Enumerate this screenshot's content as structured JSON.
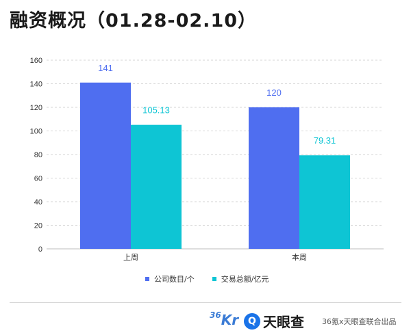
{
  "title": "融资概况（01.28-02.10）",
  "chart_data": {
    "type": "bar",
    "categories": [
      "上周",
      "本周"
    ],
    "series": [
      {
        "name": "公司数目/个",
        "values": [
          141,
          120
        ],
        "color": "#4f6ef0"
      },
      {
        "name": "交易总额/亿元",
        "values": [
          105.13,
          79.31
        ],
        "color": "#0ec5d4"
      }
    ],
    "data_labels": [
      [
        "141",
        "120"
      ],
      [
        "105.13",
        "79.31"
      ]
    ],
    "yticks": [
      0,
      20,
      40,
      60,
      80,
      100,
      120,
      140,
      160
    ],
    "ylim": [
      0,
      160
    ],
    "grid": true,
    "legend_position": "bottom"
  },
  "footer": {
    "logo_36kr": "36Kr",
    "logo_tianyancha": "天眼查",
    "credit": "36氪x天眼查联合出品"
  }
}
